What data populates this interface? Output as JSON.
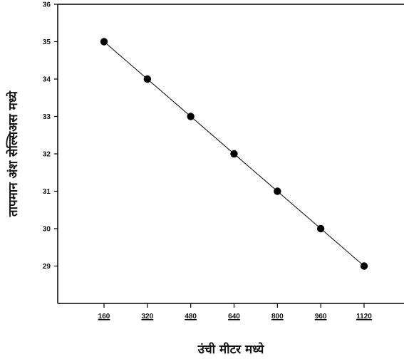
{
  "chart_data": {
    "type": "line",
    "title": "",
    "xlabel": "उंची मीटर मध्ये",
    "ylabel": "तापमान अंश सेल्सिअस मध्ये",
    "x": [
      160,
      320,
      480,
      640,
      800,
      960,
      1120
    ],
    "y": [
      35,
      34,
      33,
      32,
      31,
      30,
      29
    ],
    "x_ticks": [
      "160",
      "320",
      "480",
      "640",
      "800",
      "960",
      "1120"
    ],
    "y_ticks": [
      "36",
      "35",
      "34",
      "33",
      "32",
      "31",
      "30",
      "29"
    ],
    "xlim": [
      0,
      1280
    ],
    "ylim": [
      28.5,
      36
    ],
    "grid": false,
    "marker": "circle",
    "line_color": "#000000",
    "marker_color": "#000000"
  }
}
